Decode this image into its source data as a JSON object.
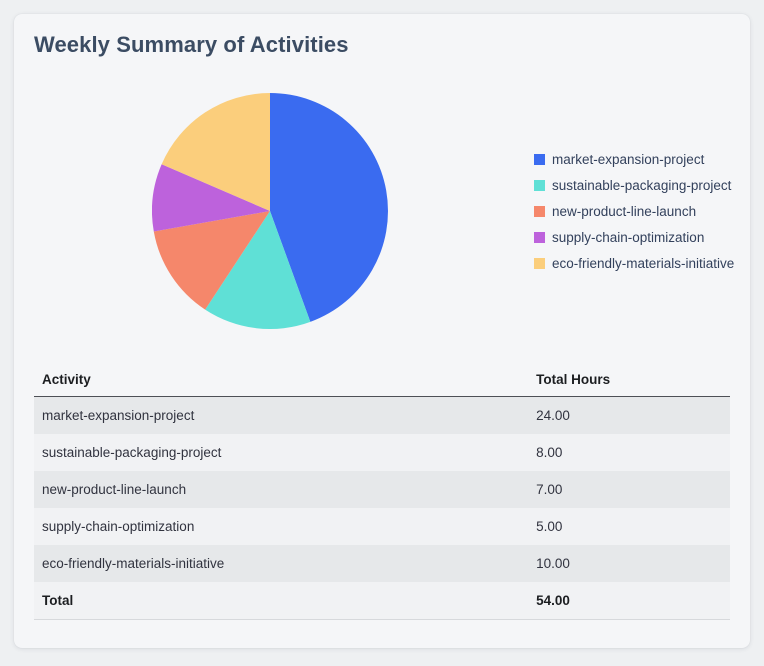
{
  "title": "Weekly Summary of Activities",
  "chart_data": {
    "type": "pie",
    "labels": [
      "market-expansion-project",
      "sustainable-packaging-project",
      "new-product-line-launch",
      "supply-chain-optimization",
      "eco-friendly-materials-initiative"
    ],
    "values": [
      24,
      8,
      7,
      5,
      10
    ],
    "colors": [
      "#3a6bf0",
      "#5fe0d6",
      "#f5876b",
      "#bd62dc",
      "#fbce7c"
    ],
    "total": 54,
    "start_angle_deg": 0,
    "direction": "clockwise",
    "legend_position": "right"
  },
  "table": {
    "columns": [
      "Activity",
      "Total Hours"
    ],
    "rows": [
      {
        "activity": "market-expansion-project",
        "hours": "24.00"
      },
      {
        "activity": "sustainable-packaging-project",
        "hours": "8.00"
      },
      {
        "activity": "new-product-line-launch",
        "hours": "7.00"
      },
      {
        "activity": "supply-chain-optimization",
        "hours": "5.00"
      },
      {
        "activity": "eco-friendly-materials-initiative",
        "hours": "10.00"
      }
    ],
    "total_row": {
      "label": "Total",
      "hours": "54.00"
    }
  }
}
